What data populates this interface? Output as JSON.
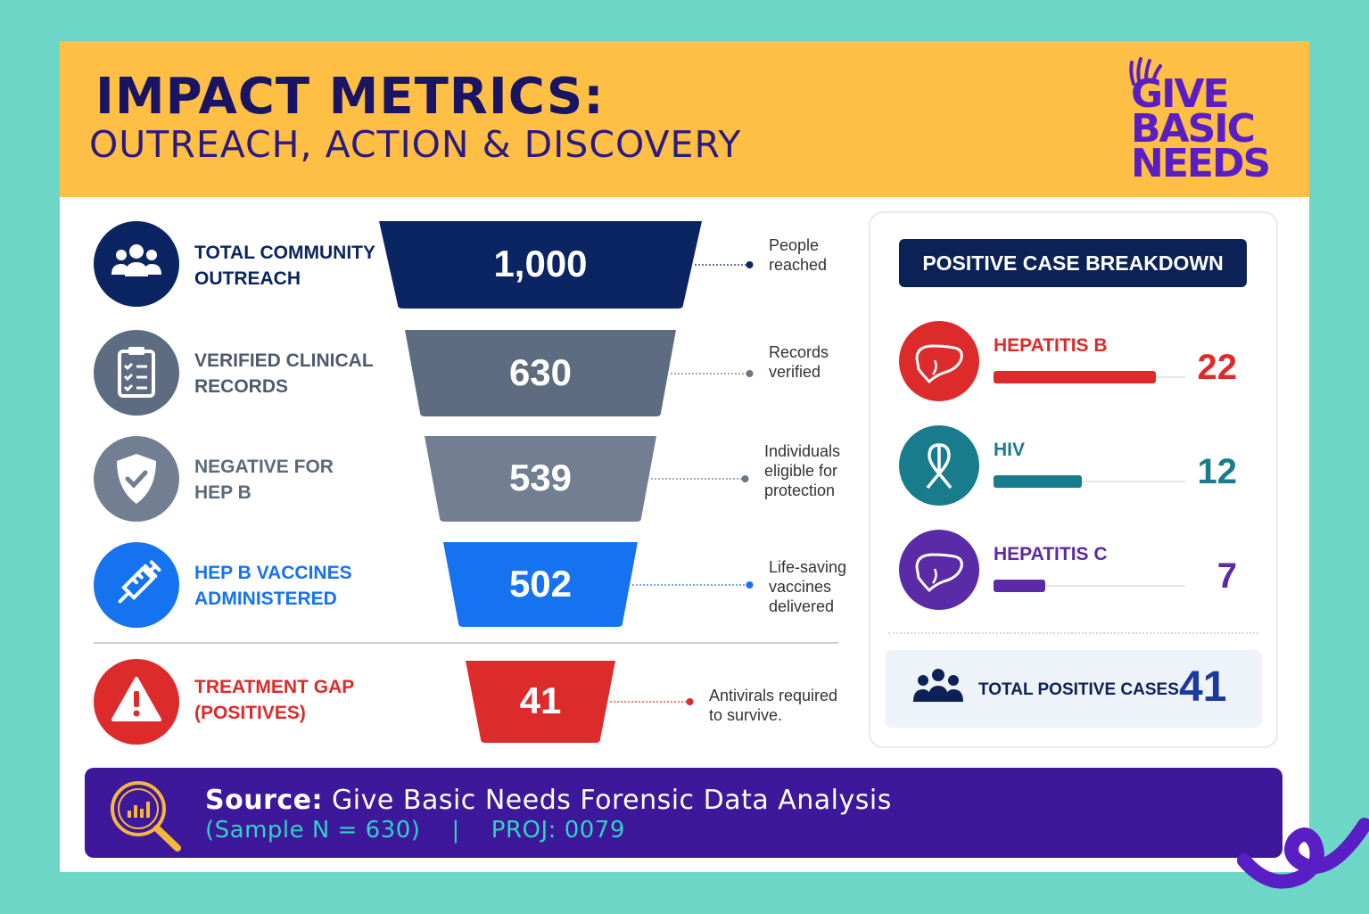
{
  "header": {
    "title": "IMPACT METRICS:",
    "subtitle": "OUTREACH, ACTION & DISCOVERY",
    "logo_lines": [
      "GIVE",
      "BASIC",
      "NEEDS"
    ]
  },
  "chart_data": [
    {
      "type": "funnel",
      "stages": [
        {
          "label": "TOTAL COMMUNITY\nOUTREACH",
          "value": 1000,
          "display": "1,000",
          "note": "People\nreached",
          "color": "#0b2563",
          "icon": "people-group-icon"
        },
        {
          "label": "VERIFIED CLINICAL\nRECORDS",
          "value": 630,
          "display": "630",
          "note": "Records\nverified",
          "color": "#5d6c80",
          "icon": "clipboard-checklist-icon"
        },
        {
          "label": "NEGATIVE FOR\nHEP B",
          "value": 539,
          "display": "539",
          "note": "Individuals\neligible for\nprotection",
          "color": "#727f92",
          "icon": "shield-check-icon"
        },
        {
          "label": "HEP B VACCINES\nADMINISTERED",
          "value": 502,
          "display": "502",
          "note": "Life-saving\nvaccines\ndelivered",
          "color": "#1673f0",
          "icon": "syringe-icon"
        },
        {
          "label": "TREATMENT GAP\n(POSITIVES)",
          "value": 41,
          "display": "41",
          "note": "Antivirals required\nto survive.",
          "color": "#dd2a2a",
          "icon": "warning-triangle-icon"
        }
      ]
    },
    {
      "type": "bar",
      "title": "POSITIVE CASE BREAKDOWN",
      "categories": [
        "HEPATITIS B",
        "HIV",
        "HEPATITIS C"
      ],
      "values": [
        22,
        12,
        7
      ],
      "colors": [
        "#dd2a2a",
        "#187c8c",
        "#5b2aa6"
      ],
      "icons": [
        "liver-icon",
        "awareness-ribbon-icon",
        "liver-icon"
      ],
      "total_label": "TOTAL POSITIVE CASES",
      "total_value": 41
    }
  ],
  "footer": {
    "source_label": "Source:",
    "source_text": "Give Basic Needs Forensic Data Analysis",
    "sample_text": "(Sample N = 630)    |    PROJ: 0079",
    "icon": "magnifier-chart-icon"
  }
}
